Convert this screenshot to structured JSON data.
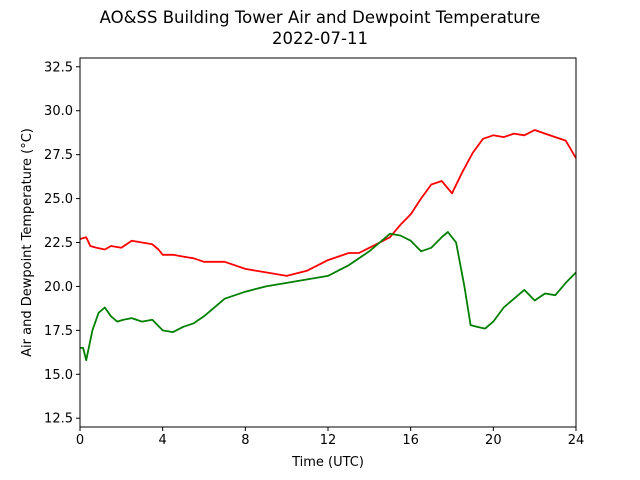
{
  "chart_data": {
    "type": "line",
    "title": "AO&SS Building Tower Air and Dewpoint Temperature",
    "subtitle": "2022-07-11",
    "xlabel": "Time (UTC)",
    "ylabel": "Air and Dewpoint Temperature (°C)",
    "xlim": [
      0,
      24
    ],
    "ylim": [
      12,
      33
    ],
    "xticks": [
      0,
      4,
      8,
      12,
      16,
      20,
      24
    ],
    "yticks": [
      12.5,
      15.0,
      17.5,
      20.0,
      22.5,
      25.0,
      27.5,
      30.0,
      32.5
    ],
    "grid": false,
    "series": [
      {
        "color": "#ff0000",
        "x": [
          0,
          0.3,
          0.5,
          0.8,
          1.2,
          1.5,
          2.0,
          2.5,
          3.0,
          3.5,
          3.8,
          4.0,
          4.5,
          5.0,
          5.5,
          6.0,
          7.0,
          8.0,
          9.0,
          10.0,
          11.0,
          11.5,
          12.0,
          12.5,
          13.0,
          13.5,
          14.0,
          14.5,
          15.0,
          15.5,
          16.0,
          16.5,
          17.0,
          17.5,
          18.0,
          18.5,
          19.0,
          19.5,
          20.0,
          20.5,
          21.0,
          21.5,
          22.0,
          22.5,
          23.0,
          23.5,
          24.0
        ],
        "values": [
          22.7,
          22.8,
          22.3,
          22.2,
          22.1,
          22.3,
          22.2,
          22.6,
          22.5,
          22.4,
          22.1,
          21.8,
          21.8,
          21.7,
          21.6,
          21.4,
          21.4,
          21.0,
          20.8,
          20.6,
          20.9,
          21.2,
          21.5,
          21.7,
          21.9,
          21.9,
          22.2,
          22.5,
          22.8,
          23.5,
          24.1,
          25.0,
          25.8,
          26.0,
          25.3,
          26.5,
          27.6,
          28.4,
          28.6,
          28.5,
          28.7,
          28.6,
          28.9,
          28.7,
          28.5,
          28.3,
          27.3
        ]
      },
      {
        "color": "#008000",
        "x": [
          0,
          0.15,
          0.3,
          0.6,
          0.9,
          1.2,
          1.5,
          1.8,
          2.1,
          2.5,
          3.0,
          3.5,
          4.0,
          4.5,
          5.0,
          5.5,
          6.0,
          7.0,
          8.0,
          9.0,
          10.0,
          11.0,
          12.0,
          12.5,
          13.0,
          13.5,
          14.0,
          14.5,
          15.0,
          15.5,
          16.0,
          16.5,
          17.0,
          17.5,
          17.8,
          18.2,
          18.6,
          18.9,
          19.2,
          19.6,
          20.0,
          20.5,
          21.0,
          21.5,
          22.0,
          22.5,
          23.0,
          23.5,
          24.0
        ],
        "values": [
          16.5,
          16.5,
          15.8,
          17.5,
          18.5,
          18.8,
          18.3,
          18.0,
          18.1,
          18.2,
          18.0,
          18.1,
          17.5,
          17.4,
          17.7,
          17.9,
          18.3,
          19.3,
          19.7,
          20.0,
          20.2,
          20.4,
          20.6,
          20.9,
          21.2,
          21.6,
          22.0,
          22.5,
          23.0,
          22.9,
          22.6,
          22.0,
          22.2,
          22.8,
          23.1,
          22.5,
          20.0,
          17.8,
          17.7,
          17.6,
          18.0,
          18.8,
          19.3,
          19.8,
          19.2,
          19.6,
          19.5,
          20.2,
          20.8
        ]
      }
    ]
  }
}
